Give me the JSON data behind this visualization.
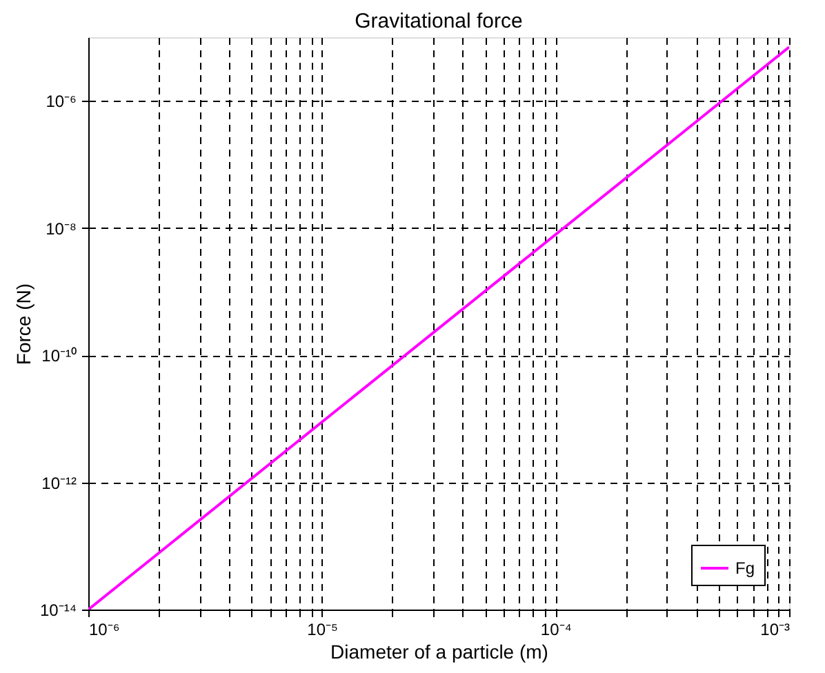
{
  "chart_data": {
    "type": "line",
    "title": "Gravitational force",
    "xlabel": "Diameter of a particle (m)",
    "ylabel": "Force (N)",
    "log": "xy",
    "xlim": [
      1e-06,
      0.001
    ],
    "ylim": [
      1e-14,
      1e-05
    ],
    "xticks": [
      {
        "value": 1e-06,
        "label": "10⁻⁶"
      },
      {
        "value": 2e-06,
        "label": null
      },
      {
        "value": 3e-06,
        "label": null
      },
      {
        "value": 4e-06,
        "label": null
      },
      {
        "value": 5e-06,
        "label": null
      },
      {
        "value": 6e-06,
        "label": null
      },
      {
        "value": 7e-06,
        "label": null
      },
      {
        "value": 8e-06,
        "label": null
      },
      {
        "value": 9e-06,
        "label": null
      },
      {
        "value": 1e-05,
        "label": "10⁻⁵"
      },
      {
        "value": 2e-05,
        "label": null
      },
      {
        "value": 3e-05,
        "label": null
      },
      {
        "value": 4e-05,
        "label": null
      },
      {
        "value": 5e-05,
        "label": null
      },
      {
        "value": 6e-05,
        "label": null
      },
      {
        "value": 7e-05,
        "label": null
      },
      {
        "value": 8e-05,
        "label": null
      },
      {
        "value": 9e-05,
        "label": null
      },
      {
        "value": 0.0001,
        "label": "10⁻⁴"
      },
      {
        "value": 0.0002,
        "label": null
      },
      {
        "value": 0.0003,
        "label": null
      },
      {
        "value": 0.0004,
        "label": null
      },
      {
        "value": 0.0005,
        "label": null
      },
      {
        "value": 0.0006,
        "label": null
      },
      {
        "value": 0.0007,
        "label": null
      },
      {
        "value": 0.0008,
        "label": null
      },
      {
        "value": 0.0009,
        "label": null
      },
      {
        "value": 0.001,
        "label": "10⁻³"
      }
    ],
    "yticks": [
      {
        "value": 1e-14,
        "label": "10⁻¹⁴"
      },
      {
        "value": 1e-12,
        "label": "10⁻¹²"
      },
      {
        "value": 1e-10,
        "label": "10⁻¹⁰"
      },
      {
        "value": 1e-08,
        "label": "10⁻⁸"
      },
      {
        "value": 1e-06,
        "label": "10⁻⁶"
      }
    ],
    "grid": true,
    "legend": "bottom right",
    "line_style": "solid",
    "series": [
      {
        "name": "Fg",
        "color": "#ff00ff",
        "x": [
          1e-06,
          0.001
        ],
        "values": [
          1e-14,
          7e-06
        ]
      }
    ]
  }
}
